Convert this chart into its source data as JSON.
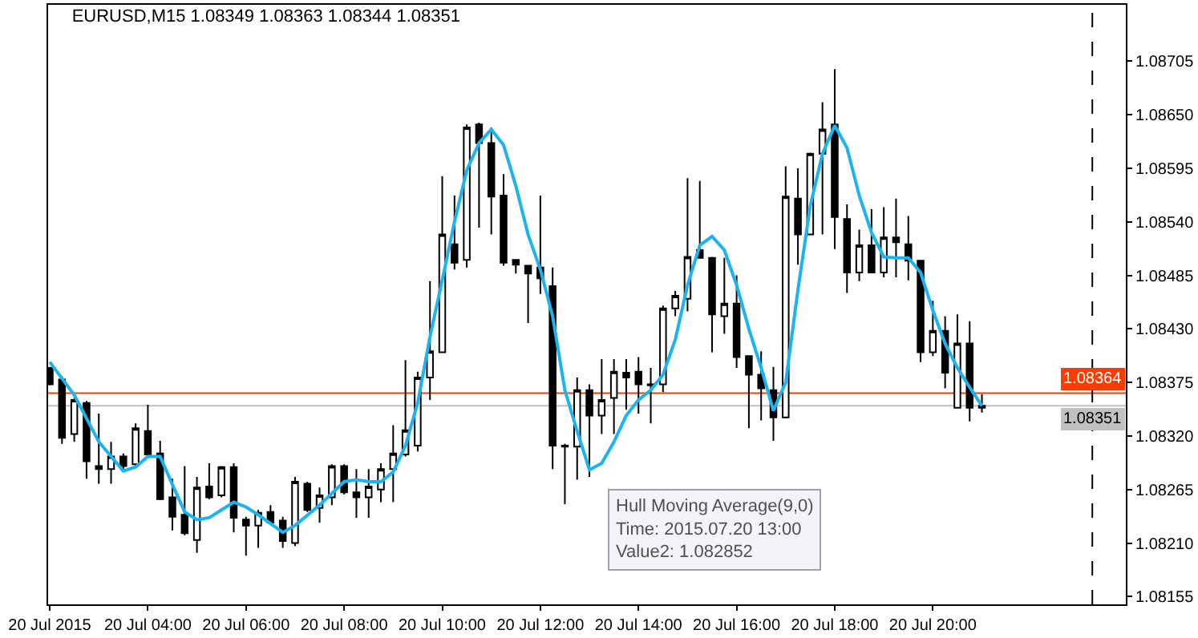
{
  "chart_data": {
    "type": "candlestick",
    "title": "EURUSD,M15 1.08349 1.08363 1.08344 1.08351",
    "x": [
      "2015-07-20T02:00",
      "2015-07-20T02:15",
      "2015-07-20T02:30",
      "2015-07-20T02:45",
      "2015-07-20T03:00",
      "2015-07-20T03:15",
      "2015-07-20T03:30",
      "2015-07-20T03:45",
      "2015-07-20T04:00",
      "2015-07-20T04:15",
      "2015-07-20T04:30",
      "2015-07-20T04:45",
      "2015-07-20T05:00",
      "2015-07-20T05:15",
      "2015-07-20T05:30",
      "2015-07-20T05:45",
      "2015-07-20T06:00",
      "2015-07-20T06:15",
      "2015-07-20T06:30",
      "2015-07-20T06:45",
      "2015-07-20T07:00",
      "2015-07-20T07:15",
      "2015-07-20T07:30",
      "2015-07-20T07:45",
      "2015-07-20T08:00",
      "2015-07-20T08:15",
      "2015-07-20T08:30",
      "2015-07-20T08:45",
      "2015-07-20T09:00",
      "2015-07-20T09:15",
      "2015-07-20T09:30",
      "2015-07-20T09:45",
      "2015-07-20T10:00",
      "2015-07-20T10:15",
      "2015-07-20T10:30",
      "2015-07-20T10:45",
      "2015-07-20T11:00",
      "2015-07-20T11:15",
      "2015-07-20T11:30",
      "2015-07-20T11:45",
      "2015-07-20T12:00",
      "2015-07-20T12:15",
      "2015-07-20T12:30",
      "2015-07-20T12:45",
      "2015-07-20T13:00",
      "2015-07-20T13:15",
      "2015-07-20T13:30",
      "2015-07-20T13:45",
      "2015-07-20T14:00",
      "2015-07-20T14:15",
      "2015-07-20T14:30",
      "2015-07-20T14:45",
      "2015-07-20T15:00",
      "2015-07-20T15:15",
      "2015-07-20T15:30",
      "2015-07-20T15:45",
      "2015-07-20T16:00",
      "2015-07-20T16:15",
      "2015-07-20T16:30",
      "2015-07-20T16:45",
      "2015-07-20T17:00",
      "2015-07-20T17:15",
      "2015-07-20T17:30",
      "2015-07-20T17:45",
      "2015-07-20T18:00",
      "2015-07-20T18:15",
      "2015-07-20T18:30",
      "2015-07-20T18:45",
      "2015-07-20T19:00",
      "2015-07-20T19:15",
      "2015-07-20T19:30",
      "2015-07-20T19:45",
      "2015-07-20T20:00",
      "2015-07-20T20:15",
      "2015-07-20T20:30",
      "2015-07-20T20:45",
      "2015-07-20T21:00"
    ],
    "ohlc": [
      [
        1.0839,
        1.08391,
        1.08372,
        1.08373
      ],
      [
        1.08378,
        1.08381,
        1.08312,
        1.08318
      ],
      [
        1.08322,
        1.08359,
        1.08314,
        1.08357
      ],
      [
        1.08354,
        1.08356,
        1.08276,
        1.08294
      ],
      [
        1.08289,
        1.08343,
        1.08271,
        1.08286
      ],
      [
        1.08286,
        1.08314,
        1.08271,
        1.08299
      ],
      [
        1.08299,
        1.08302,
        1.08284,
        1.08289
      ],
      [
        1.08291,
        1.08333,
        1.08289,
        1.08328
      ],
      [
        1.08325,
        1.08352,
        1.08301,
        1.08301
      ],
      [
        1.08302,
        1.08315,
        1.08254,
        1.08255
      ],
      [
        1.08257,
        1.08276,
        1.08223,
        1.08237
      ],
      [
        1.08239,
        1.08289,
        1.08218,
        1.0822
      ],
      [
        1.08213,
        1.08278,
        1.082,
        1.08267
      ],
      [
        1.08268,
        1.08292,
        1.08255,
        1.08257
      ],
      [
        1.08259,
        1.08289,
        1.08257,
        1.08288
      ],
      [
        1.08288,
        1.08292,
        1.08221,
        1.08236
      ],
      [
        1.08234,
        1.08237,
        1.08197,
        1.08228
      ],
      [
        1.08228,
        1.08244,
        1.08205,
        1.08241
      ],
      [
        1.08242,
        1.08249,
        1.08231,
        1.08231
      ],
      [
        1.08233,
        1.08237,
        1.08205,
        1.08212
      ],
      [
        1.0821,
        1.08278,
        1.08207,
        1.08273
      ],
      [
        1.08271,
        1.08273,
        1.08242,
        1.08244
      ],
      [
        1.08246,
        1.08267,
        1.08231,
        1.08259
      ],
      [
        1.08257,
        1.08291,
        1.08249,
        1.08289
      ],
      [
        1.08289,
        1.08291,
        1.0826,
        1.08262
      ],
      [
        1.08262,
        1.08286,
        1.08236,
        1.08257
      ],
      [
        1.08257,
        1.08286,
        1.08236,
        1.08268
      ],
      [
        1.08265,
        1.08292,
        1.08252,
        1.08286
      ],
      [
        1.08286,
        1.08331,
        1.08252,
        1.08302
      ],
      [
        1.08301,
        1.08398,
        1.08299,
        1.08326
      ],
      [
        1.0831,
        1.08386,
        1.08304,
        1.0838
      ],
      [
        1.0838,
        1.08479,
        1.08357,
        1.08407
      ],
      [
        1.08406,
        1.08587,
        1.08406,
        1.08527
      ],
      [
        1.08517,
        1.08567,
        1.08491,
        1.08498
      ],
      [
        1.08501,
        1.0864,
        1.08493,
        1.08637
      ],
      [
        1.0864,
        1.08642,
        1.08534,
        1.08621
      ],
      [
        1.08621,
        1.08637,
        1.08527,
        1.08566
      ],
      [
        1.08567,
        1.08589,
        1.08495,
        1.08498
      ],
      [
        1.08501,
        1.08501,
        1.08487,
        1.08496
      ],
      [
        1.08495,
        1.08495,
        1.08436,
        1.08487
      ],
      [
        1.08493,
        1.08567,
        1.08466,
        1.08482
      ],
      [
        1.08474,
        1.08493,
        1.08286,
        1.0831
      ],
      [
        1.0831,
        1.08312,
        1.0825,
        1.08309
      ],
      [
        1.08309,
        1.0838,
        1.08275,
        1.08367
      ],
      [
        1.08367,
        1.08373,
        1.08278,
        1.08341
      ],
      [
        1.08341,
        1.08399,
        1.08322,
        1.08357
      ],
      [
        1.08359,
        1.08399,
        1.08322,
        1.08386
      ],
      [
        1.08385,
        1.08399,
        1.08347,
        1.0838
      ],
      [
        1.08386,
        1.08401,
        1.08343,
        1.08373
      ],
      [
        1.08373,
        1.0839,
        1.08333,
        1.08372
      ],
      [
        1.08373,
        1.08454,
        1.08365,
        1.08451
      ],
      [
        1.08451,
        1.08469,
        1.08443,
        1.08464
      ],
      [
        1.08461,
        1.08585,
        1.08448,
        1.08504
      ],
      [
        1.08511,
        1.08582,
        1.08503,
        1.08503
      ],
      [
        1.08503,
        1.08504,
        1.08406,
        1.08445
      ],
      [
        1.08443,
        1.08503,
        1.08425,
        1.08456
      ],
      [
        1.08456,
        1.08485,
        1.0839,
        1.08401
      ],
      [
        1.08402,
        1.08402,
        1.08328,
        1.08383
      ],
      [
        1.08383,
        1.08407,
        1.08336,
        1.08369
      ],
      [
        1.08367,
        1.08391,
        1.08315,
        1.08339
      ],
      [
        1.08339,
        1.08597,
        1.08338,
        1.08566
      ],
      [
        1.08564,
        1.08595,
        1.08496,
        1.08527
      ],
      [
        1.08527,
        1.08611,
        1.08527,
        1.0861
      ],
      [
        1.0861,
        1.08663,
        1.08527,
        1.08635
      ],
      [
        1.0864,
        1.08697,
        1.08512,
        1.08545
      ],
      [
        1.08543,
        1.08558,
        1.08467,
        1.08488
      ],
      [
        1.08488,
        1.08532,
        1.08479,
        1.08516
      ],
      [
        1.08516,
        1.08553,
        1.08488,
        1.08488
      ],
      [
        1.08488,
        1.08555,
        1.08483,
        1.08524
      ],
      [
        1.08524,
        1.08564,
        1.08483,
        1.08519
      ],
      [
        1.08517,
        1.08546,
        1.0848,
        1.085
      ],
      [
        1.085,
        1.085,
        1.08396,
        1.08406
      ],
      [
        1.08406,
        1.08459,
        1.08402,
        1.08428
      ],
      [
        1.08428,
        1.08443,
        1.08369,
        1.08385
      ],
      [
        1.08349,
        1.08445,
        1.08349,
        1.08415
      ],
      [
        1.08415,
        1.08438,
        1.08335,
        1.08349
      ],
      [
        1.08349,
        1.08363,
        1.08344,
        1.08351
      ]
    ],
    "series": [
      {
        "type": "line",
        "color": "#1ab4f0",
        "x": [
          "2015-07-20T02:00",
          "2015-07-20T02:30",
          "2015-07-20T03:00",
          "2015-07-20T03:30",
          "2015-07-20T03:45",
          "2015-07-20T04:00",
          "2015-07-20T04:15",
          "2015-07-20T04:30",
          "2015-07-20T04:45",
          "2015-07-20T05:00",
          "2015-07-20T05:15",
          "2015-07-20T05:30",
          "2015-07-20T05:45",
          "2015-07-20T06:00",
          "2015-07-20T06:15",
          "2015-07-20T06:45",
          "2015-07-20T07:00",
          "2015-07-20T07:30",
          "2015-07-20T08:00",
          "2015-07-20T08:15",
          "2015-07-20T08:30",
          "2015-07-20T08:45",
          "2015-07-20T09:00",
          "2015-07-20T09:15",
          "2015-07-20T09:30",
          "2015-07-20T09:45",
          "2015-07-20T10:00",
          "2015-07-20T10:15",
          "2015-07-20T10:30",
          "2015-07-20T10:45",
          "2015-07-20T11:00",
          "2015-07-20T11:15",
          "2015-07-20T11:30",
          "2015-07-20T11:45",
          "2015-07-20T12:00",
          "2015-07-20T12:15",
          "2015-07-20T12:30",
          "2015-07-20T12:45",
          "2015-07-20T13:00",
          "2015-07-20T13:15",
          "2015-07-20T13:30",
          "2015-07-20T13:45",
          "2015-07-20T14:00",
          "2015-07-20T14:15",
          "2015-07-20T14:30",
          "2015-07-20T14:45",
          "2015-07-20T15:00",
          "2015-07-20T15:15",
          "2015-07-20T15:30",
          "2015-07-20T15:45",
          "2015-07-20T16:00",
          "2015-07-20T16:15",
          "2015-07-20T16:30",
          "2015-07-20T16:45",
          "2015-07-20T17:00",
          "2015-07-20T17:15",
          "2015-07-20T17:30",
          "2015-07-20T17:45",
          "2015-07-20T18:00",
          "2015-07-20T18:15",
          "2015-07-20T18:30",
          "2015-07-20T18:45",
          "2015-07-20T19:00",
          "2015-07-20T19:15",
          "2015-07-20T19:30",
          "2015-07-20T19:45",
          "2015-07-20T20:00",
          "2015-07-20T20:15",
          "2015-07-20T20:30",
          "2015-07-20T20:45",
          "2015-07-20T21:00"
        ],
        "values": [
          1.08396,
          1.08362,
          1.08314,
          1.08284,
          1.08288,
          1.08299,
          1.08299,
          1.0827,
          1.08242,
          1.08234,
          1.08236,
          1.08244,
          1.08252,
          1.08247,
          1.08239,
          1.08221,
          1.08228,
          1.08249,
          1.08273,
          1.08275,
          1.08273,
          1.08273,
          1.08283,
          1.0831,
          1.08354,
          1.08422,
          1.0848,
          1.0854,
          1.08593,
          1.08621,
          1.08635,
          1.08619,
          1.08577,
          1.08527,
          1.08491,
          1.08443,
          1.08367,
          1.08325,
          1.082852,
          1.08292,
          1.08314,
          1.08341,
          1.08357,
          1.08367,
          1.08383,
          1.08419,
          1.08475,
          1.08516,
          1.08525,
          1.08511,
          1.08475,
          1.0843,
          1.0839,
          1.08346,
          1.08375,
          1.0847,
          1.08556,
          1.0861,
          1.08639,
          1.08616,
          1.08567,
          1.08529,
          1.08504,
          1.08503,
          1.08503,
          1.08488,
          1.08449,
          1.08415,
          1.0839,
          1.0837,
          1.08351
        ]
      }
    ],
    "xlim": [
      "2015-07-20T01:58",
      "2015-07-20T23:56"
    ],
    "xticks": [
      {
        "value": "2015-07-20T02:00",
        "label": "20 Jul 2015"
      },
      {
        "value": "2015-07-20T04:00",
        "label": "20 Jul 04:00"
      },
      {
        "value": "2015-07-20T06:00",
        "label": "20 Jul 06:00"
      },
      {
        "value": "2015-07-20T08:00",
        "label": "20 Jul 08:00"
      },
      {
        "value": "2015-07-20T10:00",
        "label": "20 Jul 10:00"
      },
      {
        "value": "2015-07-20T12:00",
        "label": "20 Jul 12:00"
      },
      {
        "value": "2015-07-20T14:00",
        "label": "20 Jul 14:00"
      },
      {
        "value": "2015-07-20T16:00",
        "label": "20 Jul 16:00"
      },
      {
        "value": "2015-07-20T18:00",
        "label": "20 Jul 18:00"
      },
      {
        "value": "2015-07-20T20:00",
        "label": "20 Jul 20:00"
      }
    ],
    "ylim": [
      1.08147,
      1.08763
    ],
    "yticks": [
      1.08155,
      {
        "value": 1.0821,
        "label": "1.08210"
      },
      1.08265,
      {
        "value": 1.0832,
        "label": "1.08320"
      },
      1.08375,
      {
        "value": 1.0843,
        "label": "1.08430"
      },
      1.08485,
      {
        "value": 1.0854,
        "label": "1.08540"
      },
      1.08595,
      {
        "value": 1.0865,
        "label": "1.08650"
      },
      1.08705
    ],
    "ref_lines": [
      {
        "axis": "y",
        "value": 1.08364,
        "label": "1.08364",
        "color": "#ff3c00"
      },
      {
        "axis": "y",
        "value": 1.08351,
        "label": "1.08351",
        "color": "#c0c0c0"
      },
      {
        "axis": "x",
        "value": "2015-07-20T23:15",
        "color": "#000000",
        "line_style": "dashed"
      }
    ],
    "annotations": [
      {
        "text": "Hull Moving Average(9,0)\nTime: 2015.07.20 13:00\nValue2: 1.082852",
        "x": "2015-07-20T13:00",
        "y": 1.082852
      }
    ],
    "grid": false
  }
}
